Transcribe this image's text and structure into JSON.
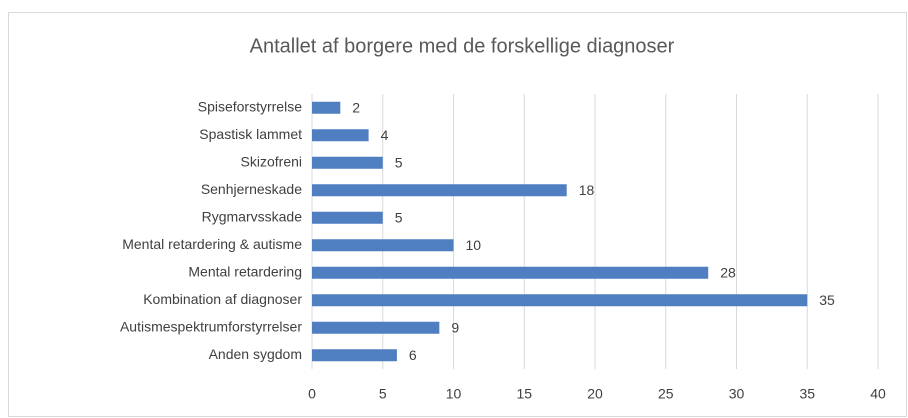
{
  "chart_data": {
    "type": "bar",
    "orientation": "horizontal",
    "title": "Antallet af borgere med de forskellige diagnoser",
    "categories": [
      "Spiseforstyrrelse",
      "Spastisk lammet",
      "Skizofreni",
      "Senhjerneskade",
      "Rygmarvsskade",
      "Mental retardering & autisme",
      "Mental retardering",
      "Kombination af diagnoser",
      "Autismespektrumforstyrrelser",
      "Anden sygdom"
    ],
    "values": [
      2,
      4,
      5,
      18,
      5,
      10,
      28,
      35,
      9,
      6
    ],
    "color": "#4f7fc0",
    "xlim": [
      0,
      40
    ],
    "xticks": [
      0,
      5,
      10,
      15,
      20,
      25,
      30,
      35,
      40
    ],
    "grid": true
  }
}
